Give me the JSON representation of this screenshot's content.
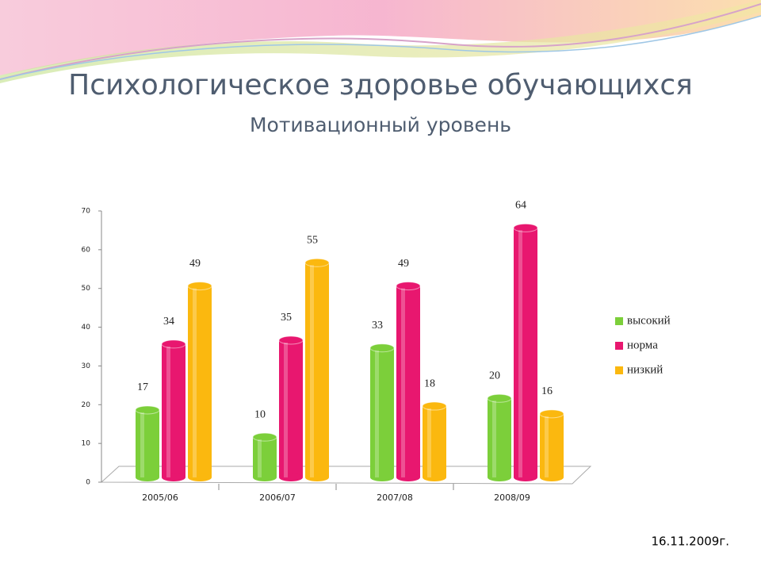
{
  "chart_data": {
    "type": "bar",
    "title": "Психологическое здоровье обучающихся",
    "subtitle": "Мотивационный уровень",
    "categories": [
      "2005/06",
      "2006/07",
      "2007/08",
      "2008/09"
    ],
    "series": [
      {
        "name": "высокий",
        "color": "#7ccf3a",
        "values": [
          17,
          10,
          33,
          20
        ]
      },
      {
        "name": "норма",
        "color": "#e8176f",
        "values": [
          34,
          35,
          49,
          64
        ]
      },
      {
        "name": "низкий",
        "color": "#fbb80f",
        "values": [
          49,
          55,
          18,
          16
        ]
      }
    ],
    "ylim": [
      0,
      70
    ],
    "yticks": [
      0,
      10,
      20,
      30,
      40,
      50,
      60,
      70
    ],
    "legend": "right",
    "date": "16.11.2009г."
  }
}
